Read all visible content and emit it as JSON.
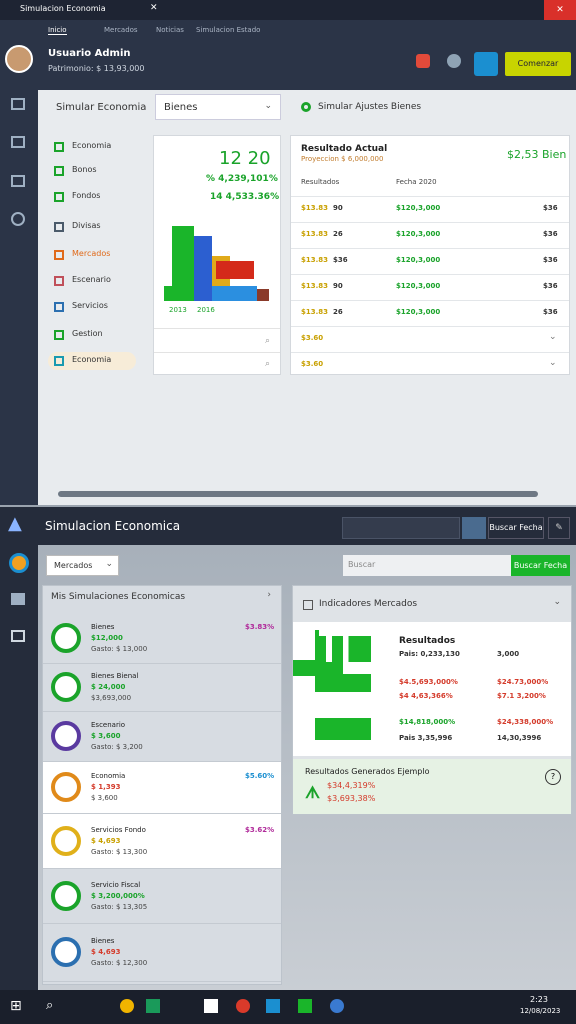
{
  "top": {
    "title": "Simulacion Economia",
    "tabs": [
      "Inicio",
      "Mercados",
      "Noticias",
      "Simulacion Estado"
    ],
    "user_name": "Usuario Admin",
    "user_balance": "Patrimonio: $ 13,93,000",
    "action": "Comenzar"
  },
  "main": {
    "panel_title": "Simular Economia",
    "select": "Bienes",
    "nav": [
      "Economia",
      "Bonos",
      "Fondos",
      "Divisas",
      "Mercados",
      "Escenario",
      "Servicios",
      "Gestion",
      "Economia"
    ],
    "stat_big": "12 20",
    "stat_1": "% 4,239,101%",
    "stat_2": "14 4,533.36%",
    "chart_labels": [
      "2013",
      "2016"
    ]
  },
  "results": {
    "title": "Simular Ajustes Bienes",
    "heading": "Resultado Actual",
    "subheading": "Proyeccion $ 6,000,000",
    "total": "$2,53 Bien",
    "columns": [
      "Resultados",
      "Fecha 2020"
    ],
    "rows": [
      [
        "$13.83",
        "90",
        "$120,3,000",
        "$36"
      ],
      [
        "$13.83",
        "26",
        "$120,3,000",
        "$36"
      ],
      [
        "$13.83",
        "$36",
        "$120,3,000",
        "$36"
      ],
      [
        "$13.83",
        "90",
        "$120,3,000",
        "$36"
      ],
      [
        "$13.83",
        "26",
        "$120,3,000",
        "$36"
      ]
    ],
    "footer_rows": [
      "$3.60",
      "$3.60"
    ]
  },
  "bottom": {
    "title": "Simulacion Economica",
    "search_button": "Buscar Fecha",
    "filter": "Mercados",
    "search_placeholder": "Buscar",
    "search_button2": "Buscar Fecha",
    "list_title": "Mis Simulaciones Economicas",
    "items": [
      {
        "name": "Bienes",
        "value": "$12,000",
        "detail": "Gasto: $ 13,000",
        "pct": "$3.83%"
      },
      {
        "name": "Bienes Bienal",
        "value": "$ 24,000",
        "detail": "$3,693,000"
      },
      {
        "name": "Escenario",
        "value": "$ 3,600",
        "detail": "Gasto: $ 3,200"
      },
      {
        "name": "Economia",
        "value": "$ 1,393",
        "detail": "$ 3,600",
        "pct": "$5.60%"
      },
      {
        "name": "Servicios Fondo",
        "value": "$ 4,693",
        "detail": "Gasto: $ 13,300",
        "pct": "$3.62%"
      },
      {
        "name": "Servicio Fiscal",
        "value": "$ 3,200,000%",
        "detail": "Gasto: $ 13,305"
      },
      {
        "name": "Bienes",
        "value": "$ 4,693",
        "detail": "Gasto: $ 12,300"
      }
    ],
    "indicators": {
      "title": "Indicadores Mercados",
      "heading": "Resultados",
      "rows": [
        [
          "Pais: 0,233,130",
          "3,000"
        ],
        [
          "$4.5,693,000%",
          "$24.73,000%"
        ],
        [
          "$4 4,63,366%",
          "$7.1 3,200%"
        ],
        [
          "$14,818,000%",
          "$24,338,000%"
        ],
        [
          "Pais 3,35,996",
          "14,30,3996"
        ]
      ],
      "summary_title": "Resultados Generados Ejemplo",
      "summary_1": "$34,4,319%",
      "summary_2": "$3,693,38%"
    }
  },
  "taskbar": {
    "time": "2:23",
    "date": "12/08/2023"
  }
}
